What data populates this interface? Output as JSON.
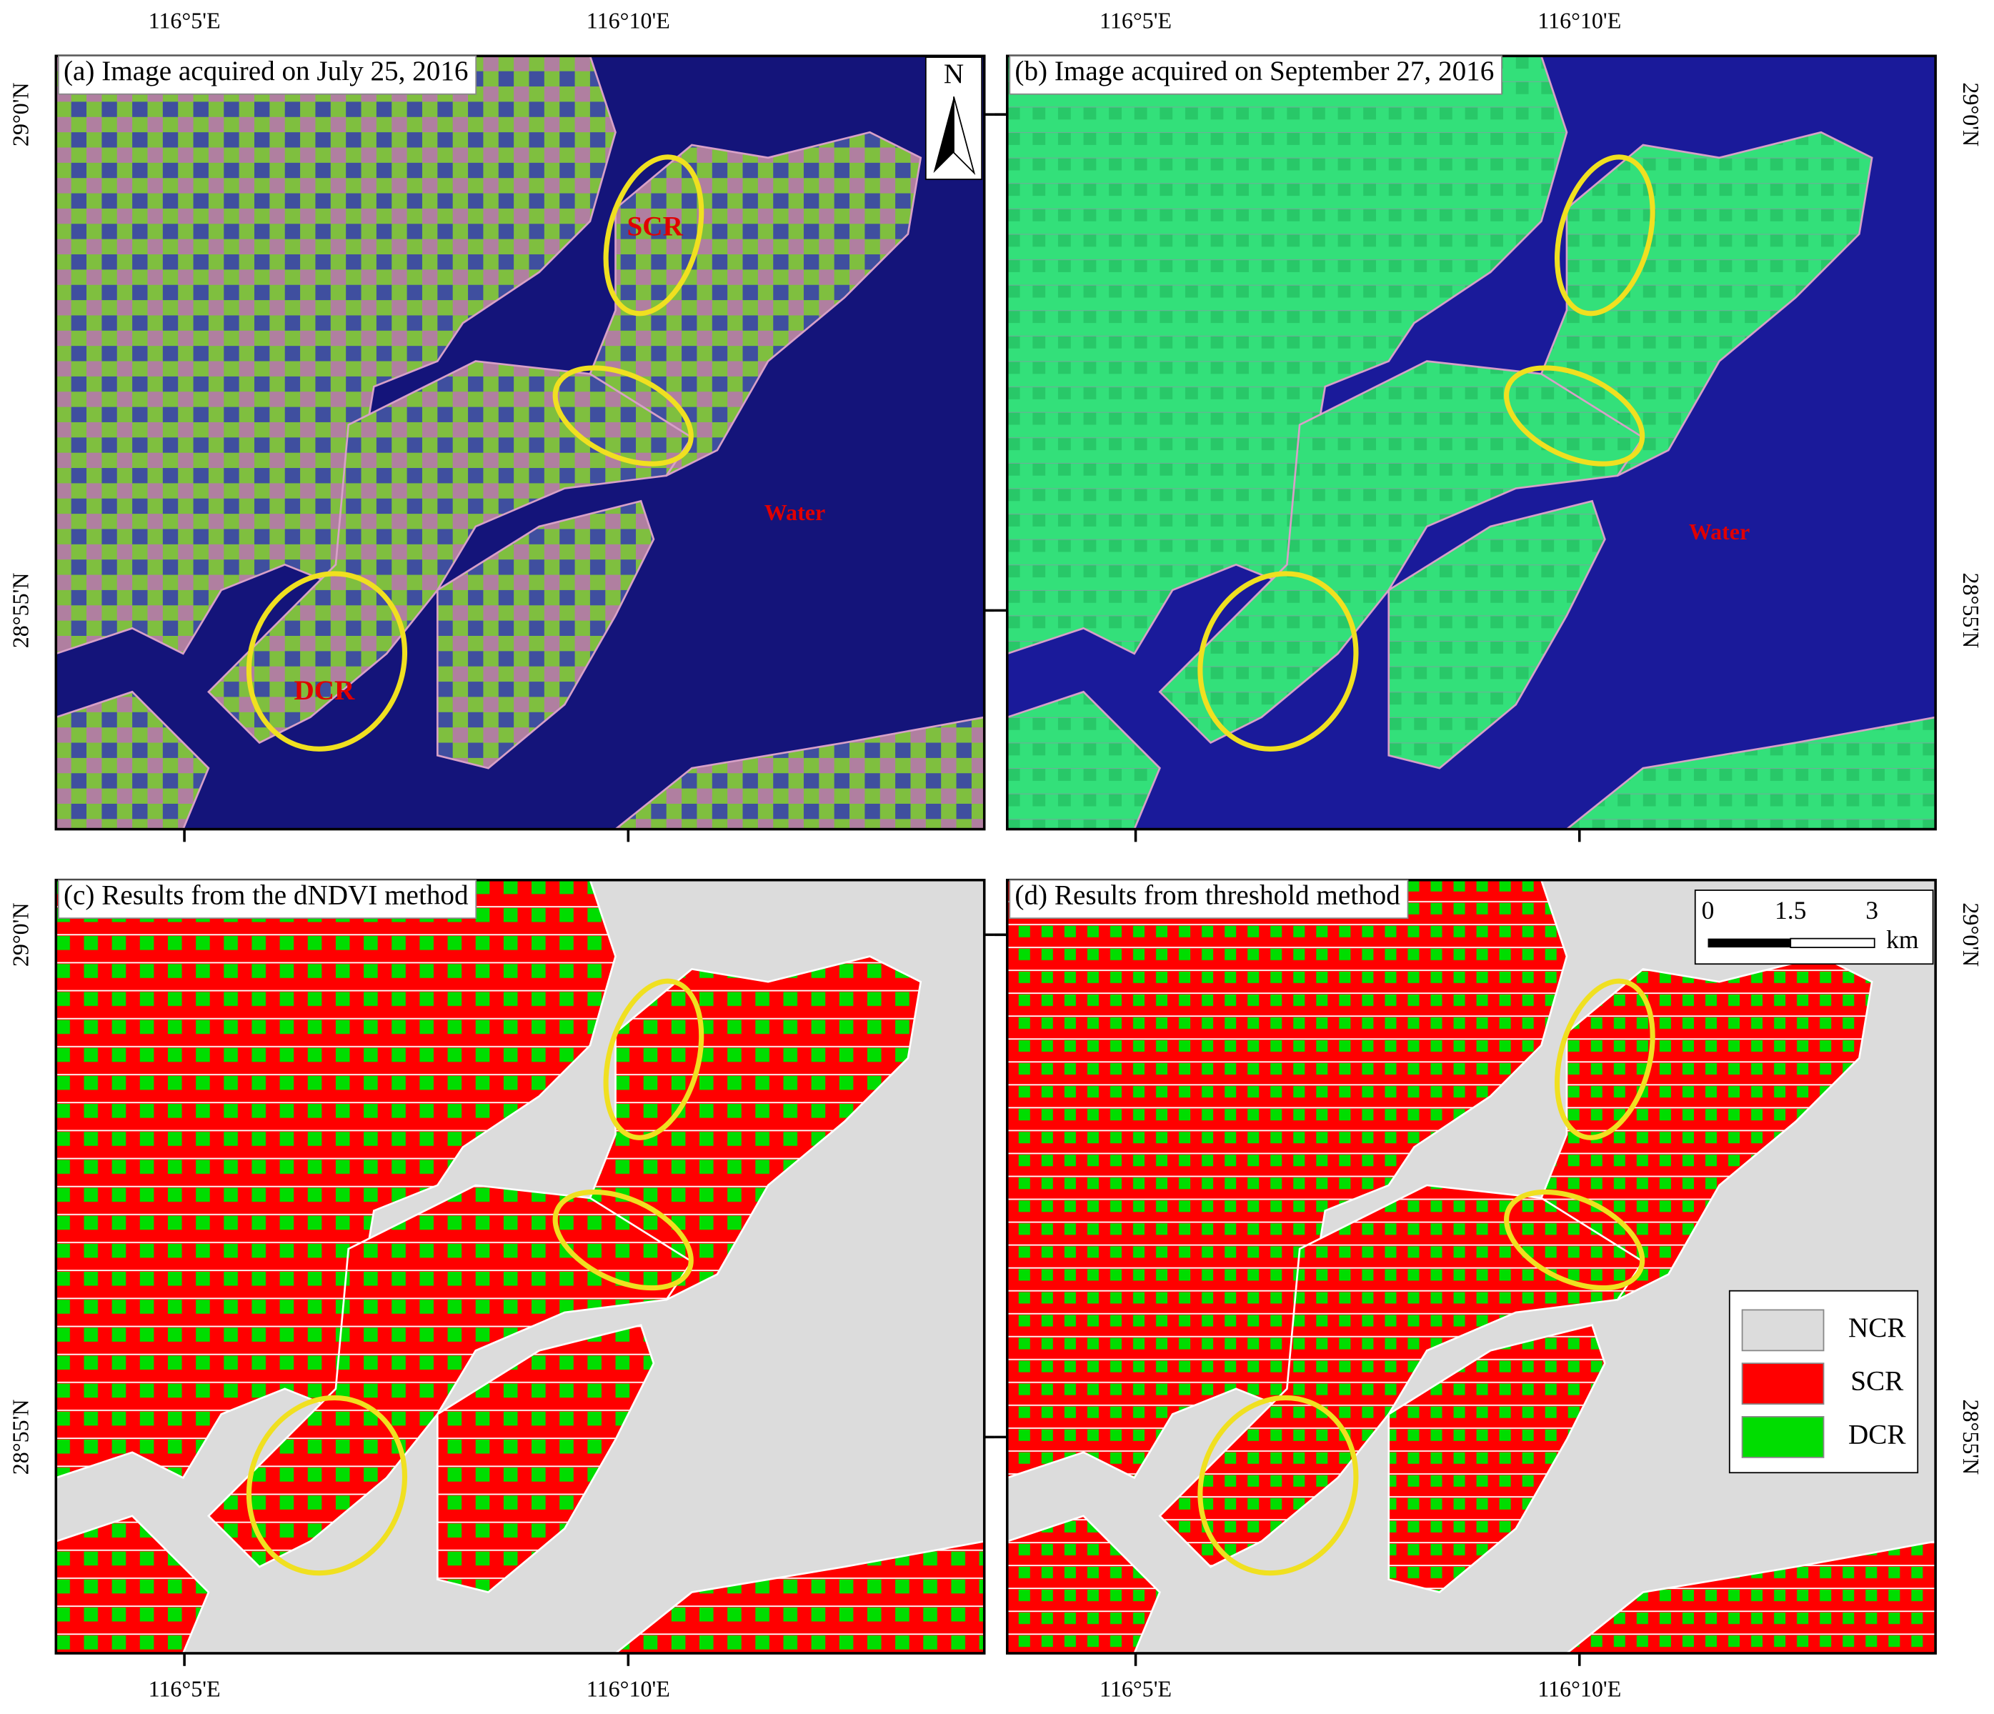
{
  "panels": [
    {
      "label": "(a) Image acquired on July 25, 2016",
      "annotations": [
        "SCR",
        "DCR",
        "Water"
      ]
    },
    {
      "label": "(b) Image acquired on September 27, 2016",
      "annotations": [
        "Water"
      ]
    },
    {
      "label": "(c) Results from the dNDVI method"
    },
    {
      "label": "(d) Results from threshold method"
    }
  ],
  "axes": {
    "x_labels": [
      "116°5'E",
      "116°10'E"
    ],
    "y_labels": [
      "29°0'N",
      "28°55'N"
    ]
  },
  "north_arrow": "N",
  "scale_bar": {
    "ticks": [
      "0",
      "1.5",
      "3"
    ],
    "unit": "km"
  },
  "legend": [
    {
      "name": "NCR",
      "color": "#dcdcdc"
    },
    {
      "name": "SCR",
      "color": "#ff0000"
    },
    {
      "name": "DCR",
      "color": "#00dd00"
    }
  ]
}
